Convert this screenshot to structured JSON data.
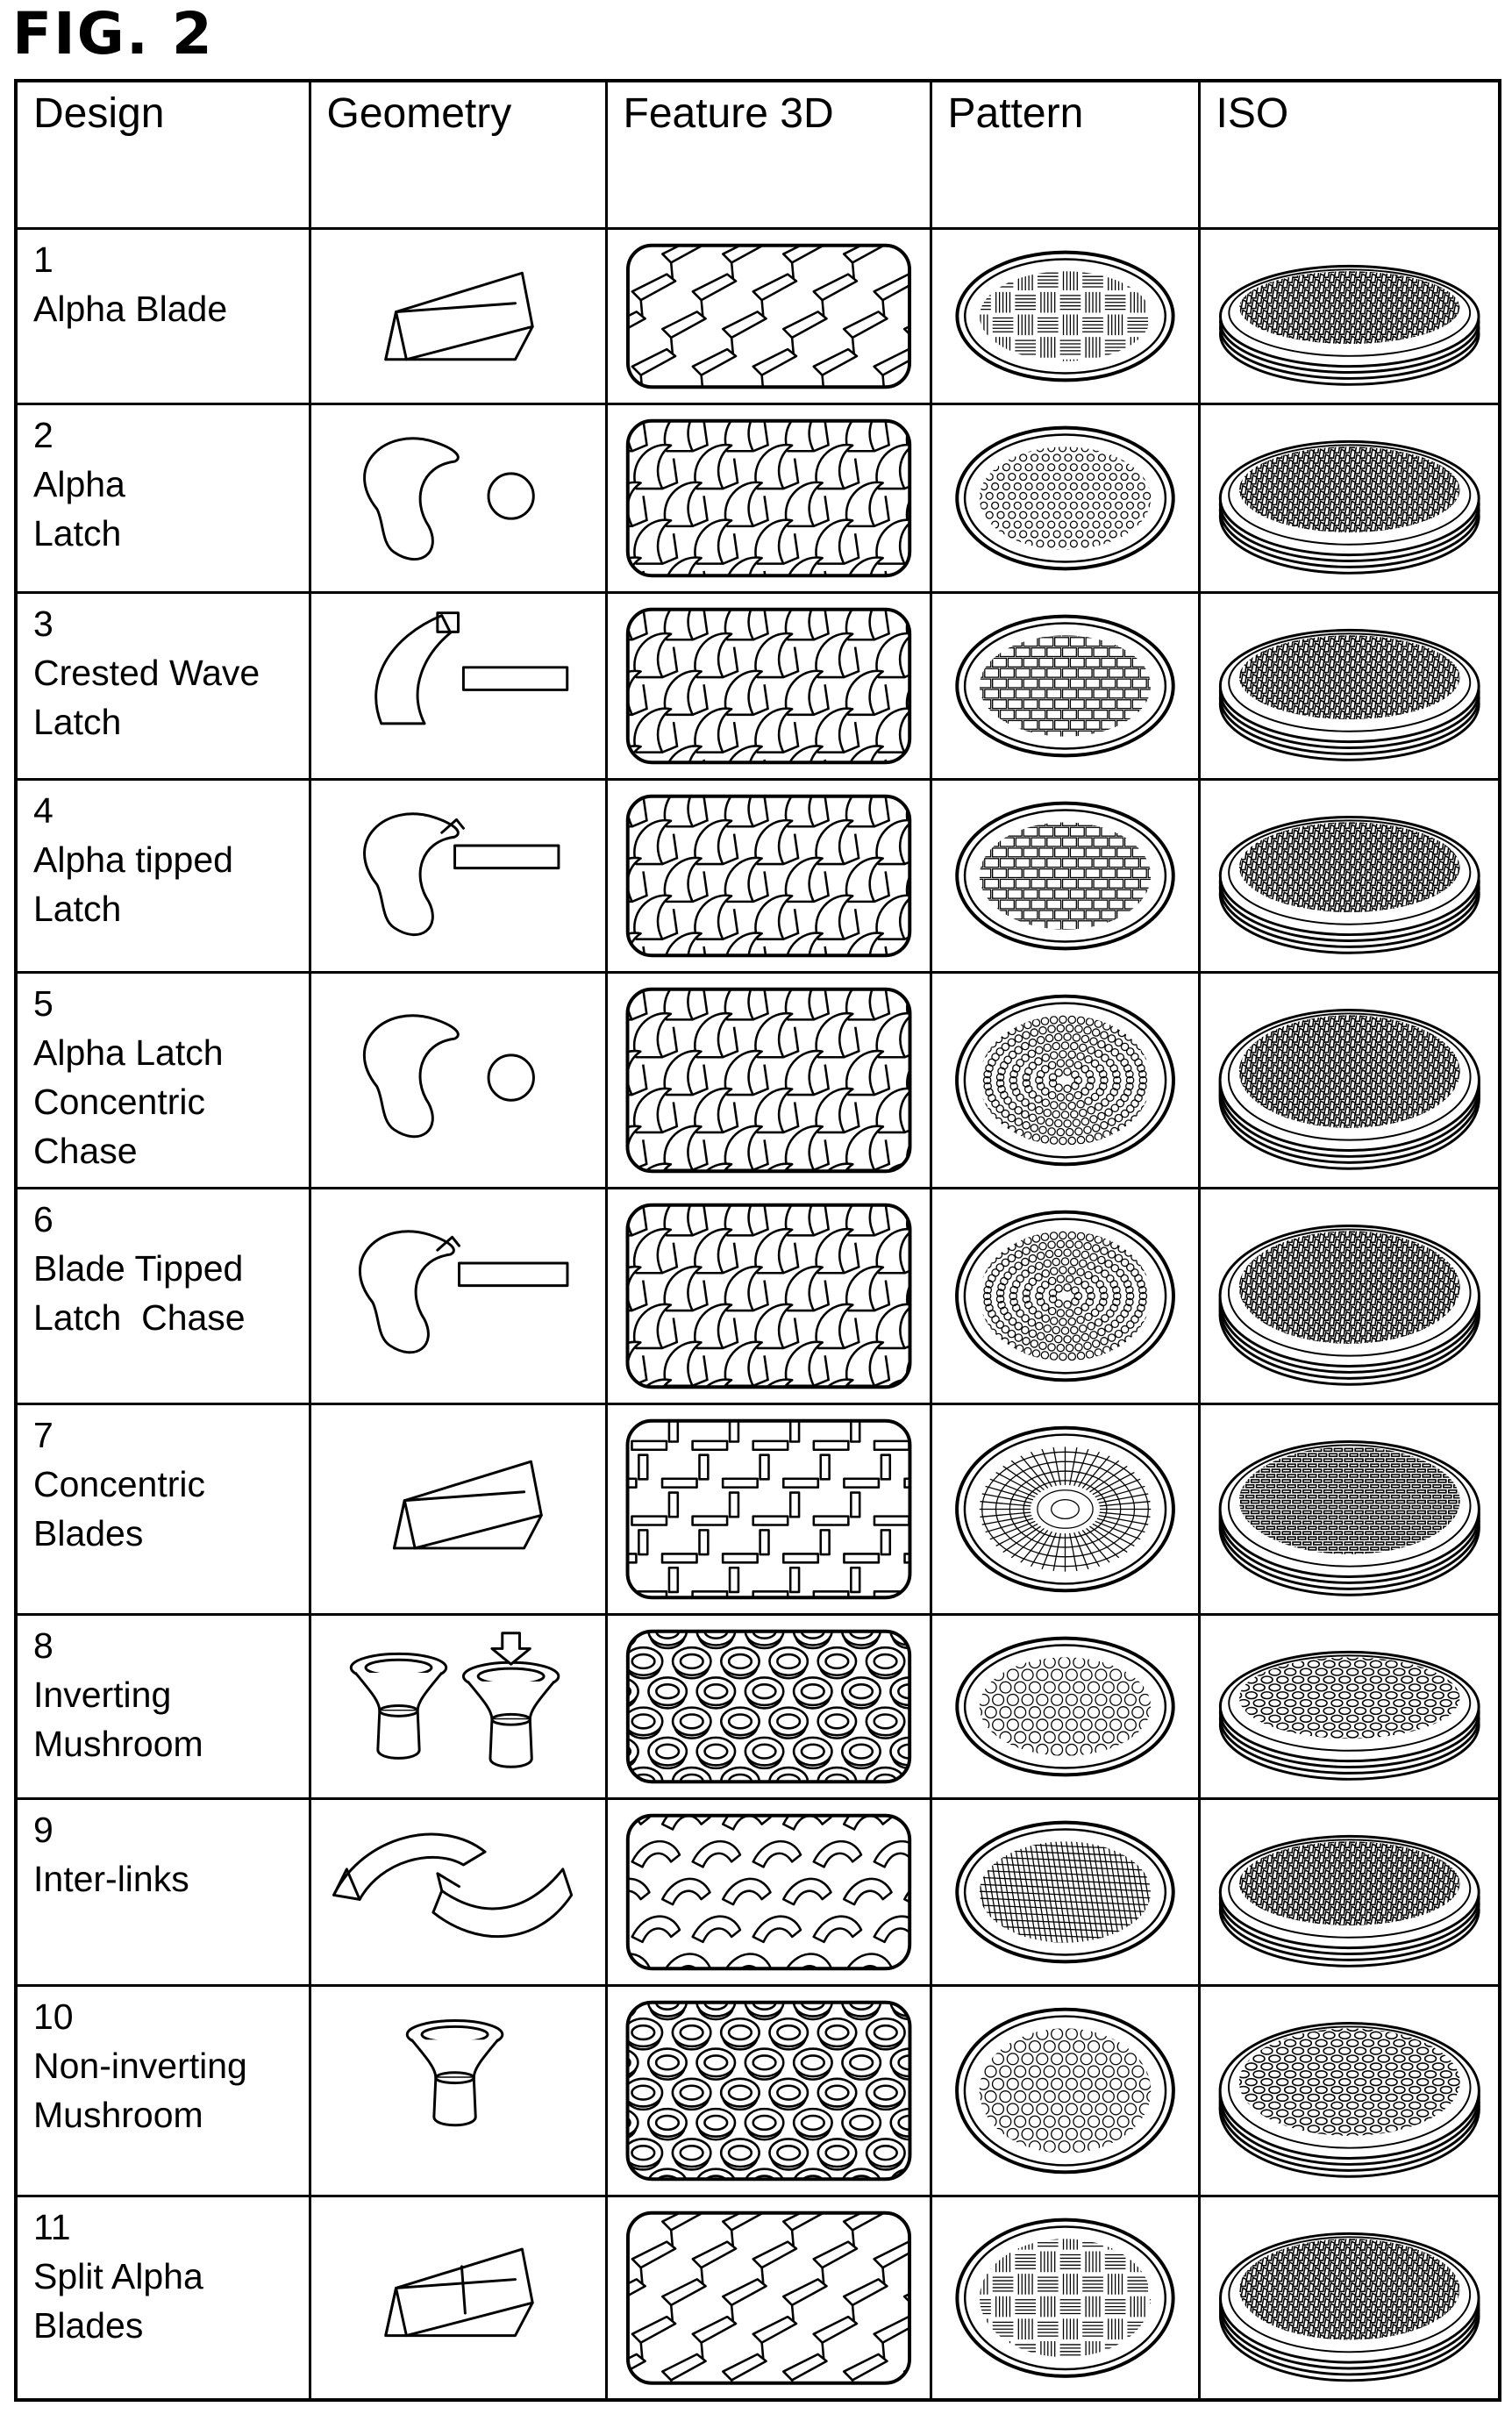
{
  "figure_label": "FIG. 2",
  "columns": [
    "Design",
    "Geometry",
    "Feature 3D",
    "Pattern",
    "ISO"
  ],
  "rows": [
    {
      "number": "1",
      "lines": [
        "Alpha Blade"
      ],
      "geometry_icon": "alpha-blade-icon",
      "pattern": "weave"
    },
    {
      "number": "2",
      "lines": [
        "Alpha",
        "Latch"
      ],
      "geometry_icon": "alpha-latch-icon",
      "pattern": "dots"
    },
    {
      "number": "3",
      "lines": [
        "Crested Wave",
        "Latch"
      ],
      "geometry_icon": "crested-wave-latch-icon",
      "pattern": "bricks"
    },
    {
      "number": "4",
      "lines": [
        "Alpha tipped",
        "Latch"
      ],
      "geometry_icon": "alpha-tipped-latch-icon",
      "pattern": "bricks"
    },
    {
      "number": "5",
      "lines": [
        "Alpha Latch",
        "Concentric",
        "Chase"
      ],
      "geometry_icon": "alpha-latch-chase-icon",
      "pattern": "chase"
    },
    {
      "number": "6",
      "lines": [
        "Blade Tipped",
        "Latch  Chase"
      ],
      "geometry_icon": "blade-tipped-latch-icon",
      "pattern": "chase"
    },
    {
      "number": "7",
      "lines": [
        "Concentric",
        "Blades"
      ],
      "geometry_icon": "concentric-blade-icon",
      "pattern": "concentric"
    },
    {
      "number": "8",
      "lines": [
        "Inverting",
        "Mushroom"
      ],
      "geometry_icon": "inverting-mushroom-icon",
      "pattern": "circles"
    },
    {
      "number": "9",
      "lines": [
        "Inter-links"
      ],
      "geometry_icon": "inter-links-icon",
      "pattern": "mesh"
    },
    {
      "number": "10",
      "lines": [
        "Non-inverting",
        "Mushroom"
      ],
      "geometry_icon": "non-inverting-mushroom-icon",
      "pattern": "circles"
    },
    {
      "number": "11",
      "lines": [
        "Split Alpha",
        "Blades"
      ],
      "geometry_icon": "split-alpha-blade-icon",
      "pattern": "weave"
    }
  ]
}
